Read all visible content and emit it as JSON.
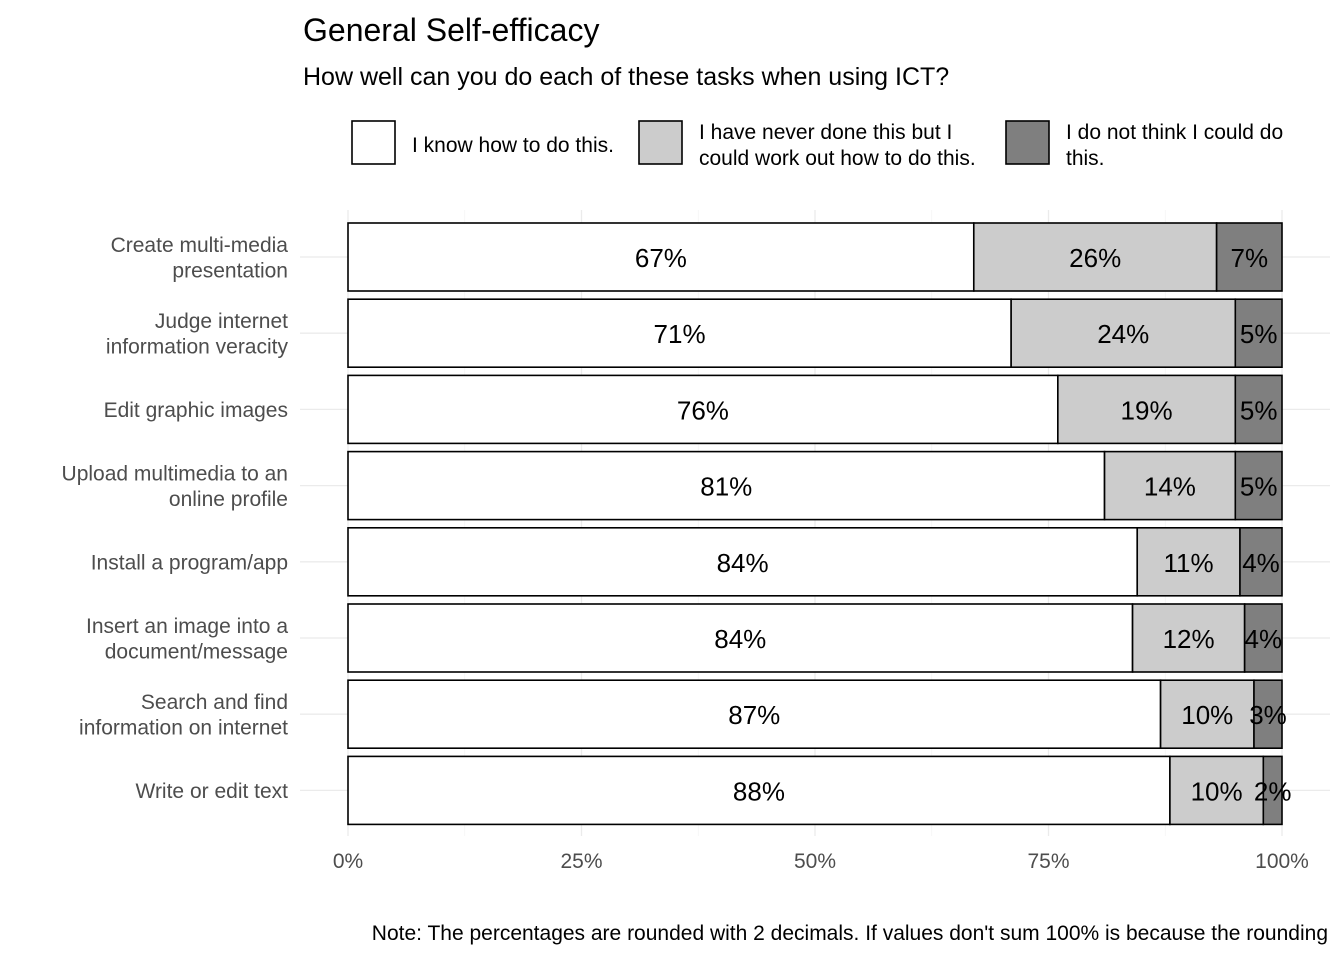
{
  "chart_data": {
    "type": "bar",
    "orientation": "horizontal",
    "stacked": true,
    "title": "General Self-efficacy",
    "subtitle": "How well can you do each of these tasks when using ICT?",
    "caption": "Note: The percentages are rounded with 2 decimals. If values don't sum 100% is because the rounding",
    "legend": {
      "position": "top",
      "entries": [
        [
          "I know how to do this."
        ],
        [
          "I have never done this but I",
          "could work out how to do this."
        ],
        [
          "I do not think I could do",
          "this."
        ]
      ]
    },
    "colors": [
      "#ffffff",
      "#cccccc",
      "#7f7f7f"
    ],
    "categories": [
      [
        "Create multi-media",
        "presentation"
      ],
      [
        "Judge internet",
        "information veracity"
      ],
      [
        "Edit graphic images"
      ],
      [
        "Upload multimedia to an",
        "online profile"
      ],
      [
        "Install a program/app"
      ],
      [
        "Insert an image into a",
        "document/message"
      ],
      [
        "Search and find",
        "information on internet"
      ],
      [
        "Write or edit text"
      ]
    ],
    "series": [
      {
        "name": "I know how to do this.",
        "values": [
          67,
          71,
          76,
          81,
          84,
          84,
          87,
          88
        ]
      },
      {
        "name": "I have never done this but I could work out how to do this.",
        "values": [
          26,
          24,
          19,
          14,
          11,
          12,
          10,
          10
        ]
      },
      {
        "name": "I do not think I could do this.",
        "values": [
          7,
          5,
          5,
          5,
          4,
          4,
          3,
          2
        ]
      }
    ],
    "segment_values": [
      [
        67.0,
        26.0,
        7.0
      ],
      [
        71.0,
        24.0,
        5.0
      ],
      [
        76.0,
        19.0,
        5.0
      ],
      [
        81.0,
        14.0,
        5.0
      ],
      [
        84.5,
        11.0,
        4.5
      ],
      [
        84.0,
        12.0,
        4.0
      ],
      [
        87.0,
        10.0,
        3.0
      ],
      [
        88.0,
        10.0,
        2.0
      ]
    ],
    "xlim": [
      0,
      100
    ],
    "xticks": [
      "0%",
      "25%",
      "50%",
      "75%",
      "100%"
    ],
    "grid": true
  }
}
